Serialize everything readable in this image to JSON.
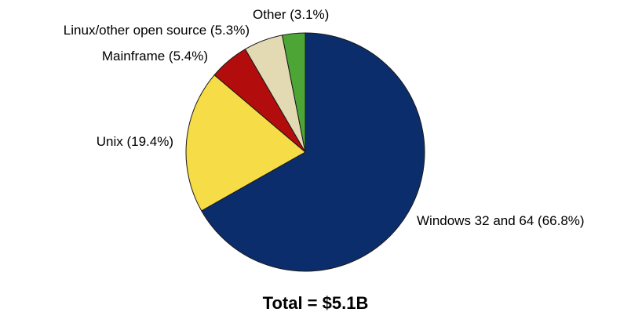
{
  "chart_data": {
    "type": "pie",
    "slices": [
      {
        "label": "Windows 32 and 64 (66.8%)",
        "value": 66.8,
        "color": "#0c2d6b"
      },
      {
        "label": "Unix (19.4%)",
        "value": 19.4,
        "color": "#f6dc46"
      },
      {
        "label": "Mainframe (5.4%)",
        "value": 5.4,
        "color": "#b30c0c"
      },
      {
        "label": "Linux/other open source (5.3%)",
        "value": 5.3,
        "color": "#e3dab4"
      },
      {
        "label": "Other (3.1%)",
        "value": 3.1,
        "color": "#4ca534"
      }
    ],
    "start_angle": "12 o'clock",
    "direction": "clockwise",
    "annotation": "Total = $5.1B"
  }
}
